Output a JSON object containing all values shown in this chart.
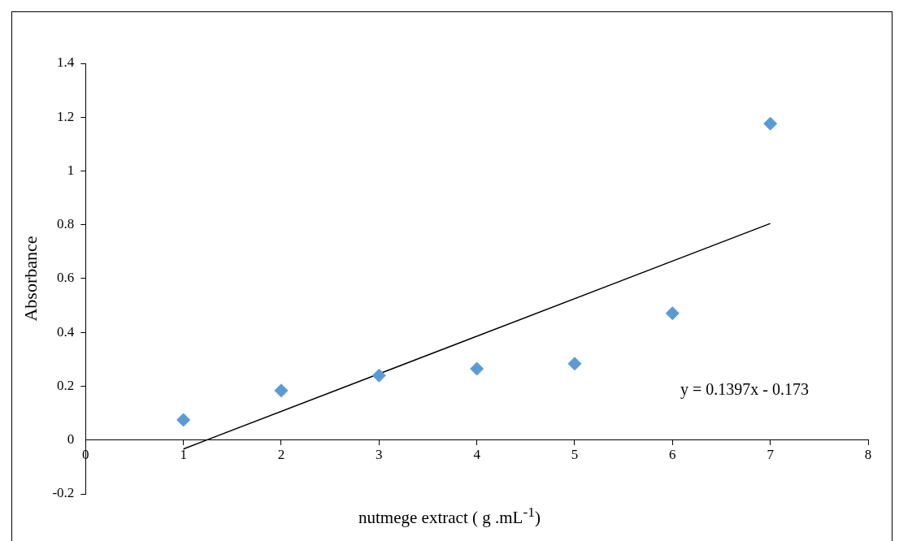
{
  "chart_data": {
    "type": "scatter",
    "xlabel": "nutmege extract ( g .mL$^{-1}$)",
    "ylabel": "Absorbance",
    "xlim": [
      0,
      8
    ],
    "xticks": [
      0,
      1,
      2,
      3,
      4,
      5,
      6,
      7,
      8
    ],
    "ylim": [
      -0.2,
      1.4
    ],
    "yticks": [
      -0.2,
      0,
      0.2,
      0.4,
      0.6,
      0.8,
      1,
      1.2,
      1.4
    ],
    "grid": false,
    "legend": false,
    "marker": "diamond",
    "annotations": [
      "y = 0.1397x - 0.173"
    ],
    "series": [
      {
        "color": "#5b9bd5",
        "x": [
          1,
          2,
          3,
          4,
          5,
          6,
          7
        ],
        "values": [
          0.075,
          0.184,
          0.24,
          0.265,
          0.284,
          0.471,
          1.176
        ]
      },
      {
        "type": "line",
        "color": "#000000",
        "marker": "none",
        "line_style": "solid",
        "x": [
          1,
          7
        ],
        "values": [
          -0.033,
          0.805
        ]
      }
    ]
  }
}
